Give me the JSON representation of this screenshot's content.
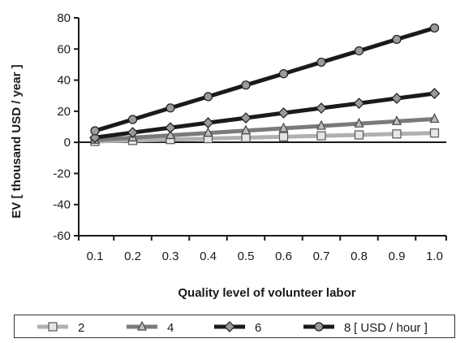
{
  "chart_data": {
    "type": "line",
    "title": "",
    "xlabel": "Quality level of volunteer labor",
    "ylabel": "EV [ thousand USD / year ]",
    "x": [
      0.1,
      0.2,
      0.3,
      0.4,
      0.5,
      0.6,
      0.7,
      0.8,
      0.9,
      1.0
    ],
    "x_tick_labels": [
      "0.1",
      "0.2",
      "0.3",
      "0.4",
      "0.5",
      "0.6",
      "0.7",
      "0.8",
      "0.9",
      "1.0"
    ],
    "ylim": [
      -60,
      80
    ],
    "y_ticks": [
      -60,
      -40,
      -20,
      0,
      20,
      40,
      60,
      80
    ],
    "grid": false,
    "legend_position": "bottom",
    "legend_unit": "[ USD / hour ]",
    "series": [
      {
        "name": "2",
        "values": [
          0.6,
          1.2,
          1.8,
          2.4,
          3.0,
          3.6,
          4.2,
          4.8,
          5.4,
          6.0
        ],
        "color": "#b0b0b0",
        "marker": "square"
      },
      {
        "name": "4",
        "values": [
          1.5,
          3.0,
          4.5,
          6.0,
          7.5,
          9.0,
          10.5,
          12.0,
          13.5,
          15.0
        ],
        "color": "#7a7a7a",
        "marker": "triangle"
      },
      {
        "name": "6",
        "values": [
          3.1,
          6.3,
          9.4,
          12.6,
          15.7,
          18.9,
          22.0,
          25.1,
          28.3,
          31.4
        ],
        "color": "#1a1a1a",
        "marker": "diamond"
      },
      {
        "name": "8",
        "values": [
          7.4,
          14.7,
          22.1,
          29.4,
          36.8,
          44.1,
          51.5,
          58.8,
          66.2,
          73.5
        ],
        "color": "#1a1a1a",
        "marker": "circle"
      }
    ]
  }
}
